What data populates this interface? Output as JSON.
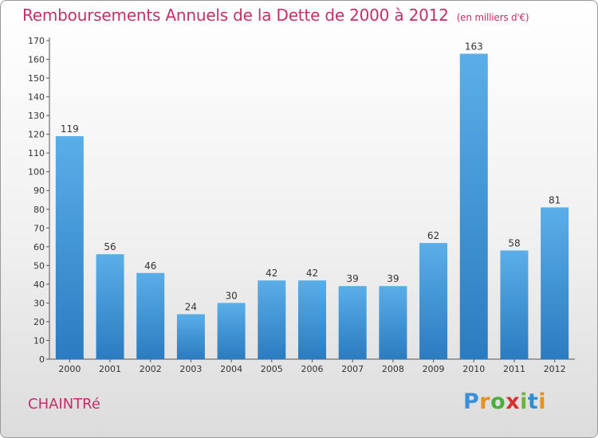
{
  "header": {
    "title": "Remboursements Annuels de la Dette de 2000 à 2012",
    "unit": "(en milliers d'€)"
  },
  "footer": {
    "commune": "CHAINTRé",
    "logo": {
      "p": "P",
      "r": "r",
      "o": "o",
      "x": "x",
      "i": "i",
      "t": "t",
      "i2": "i"
    }
  },
  "colors": {
    "title": "#c0306a",
    "bar_top": "#5aaee8",
    "bar_bottom": "#2a7cc0"
  },
  "chart_data": {
    "type": "bar",
    "title": "Remboursements Annuels de la Dette de 2000 à 2012",
    "xlabel": "",
    "ylabel": "",
    "categories": [
      "2000",
      "2001",
      "2002",
      "2003",
      "2004",
      "2005",
      "2006",
      "2007",
      "2008",
      "2009",
      "2010",
      "2011",
      "2012"
    ],
    "values": [
      119,
      56,
      46,
      24,
      30,
      42,
      42,
      39,
      39,
      62,
      163,
      58,
      81
    ],
    "ylim": [
      0,
      170
    ],
    "yticks": [
      0,
      10,
      20,
      30,
      40,
      50,
      60,
      70,
      80,
      90,
      100,
      110,
      120,
      130,
      140,
      150,
      160,
      170
    ],
    "grid": false,
    "legend": "none"
  }
}
